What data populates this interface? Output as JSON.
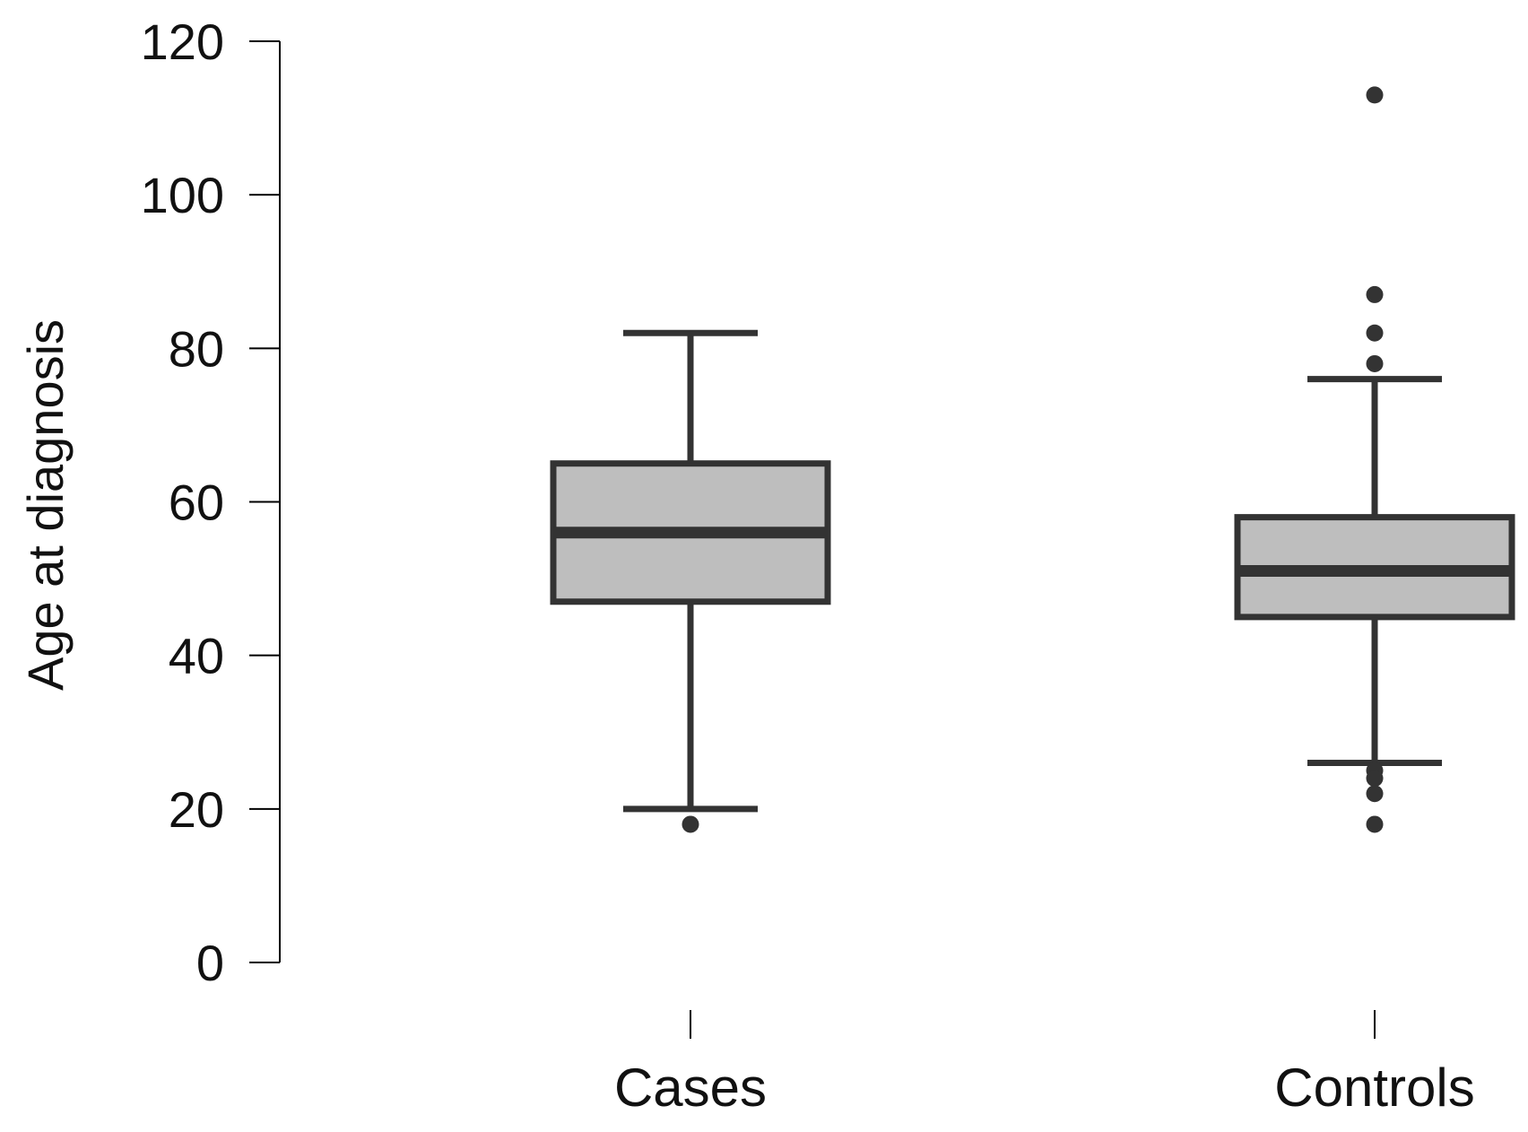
{
  "chart_data": {
    "type": "box",
    "ylabel": "Age at diagnosis",
    "xlabel": "",
    "ylim": [
      0,
      120
    ],
    "yticks": [
      0,
      20,
      40,
      60,
      80,
      100,
      120
    ],
    "y_tick_labels": [
      "0",
      "20",
      "40",
      "60",
      "80",
      "100",
      "120"
    ],
    "categories": [
      "Cases",
      "Controls"
    ],
    "grid": false,
    "legend": "none",
    "box_fill": "#bebebe",
    "box_stroke": "#333333",
    "axis_color": "#000000",
    "boxes": [
      {
        "category": "Cases",
        "whisker_low": 20,
        "q1": 47,
        "median": 56,
        "q3": 65,
        "whisker_high": 82,
        "outliers": [
          18
        ]
      },
      {
        "category": "Controls",
        "whisker_low": 26,
        "q1": 45,
        "median": 51,
        "q3": 58,
        "whisker_high": 76,
        "outliers": [
          113,
          87,
          82,
          78,
          25,
          24,
          22,
          18
        ]
      }
    ]
  }
}
